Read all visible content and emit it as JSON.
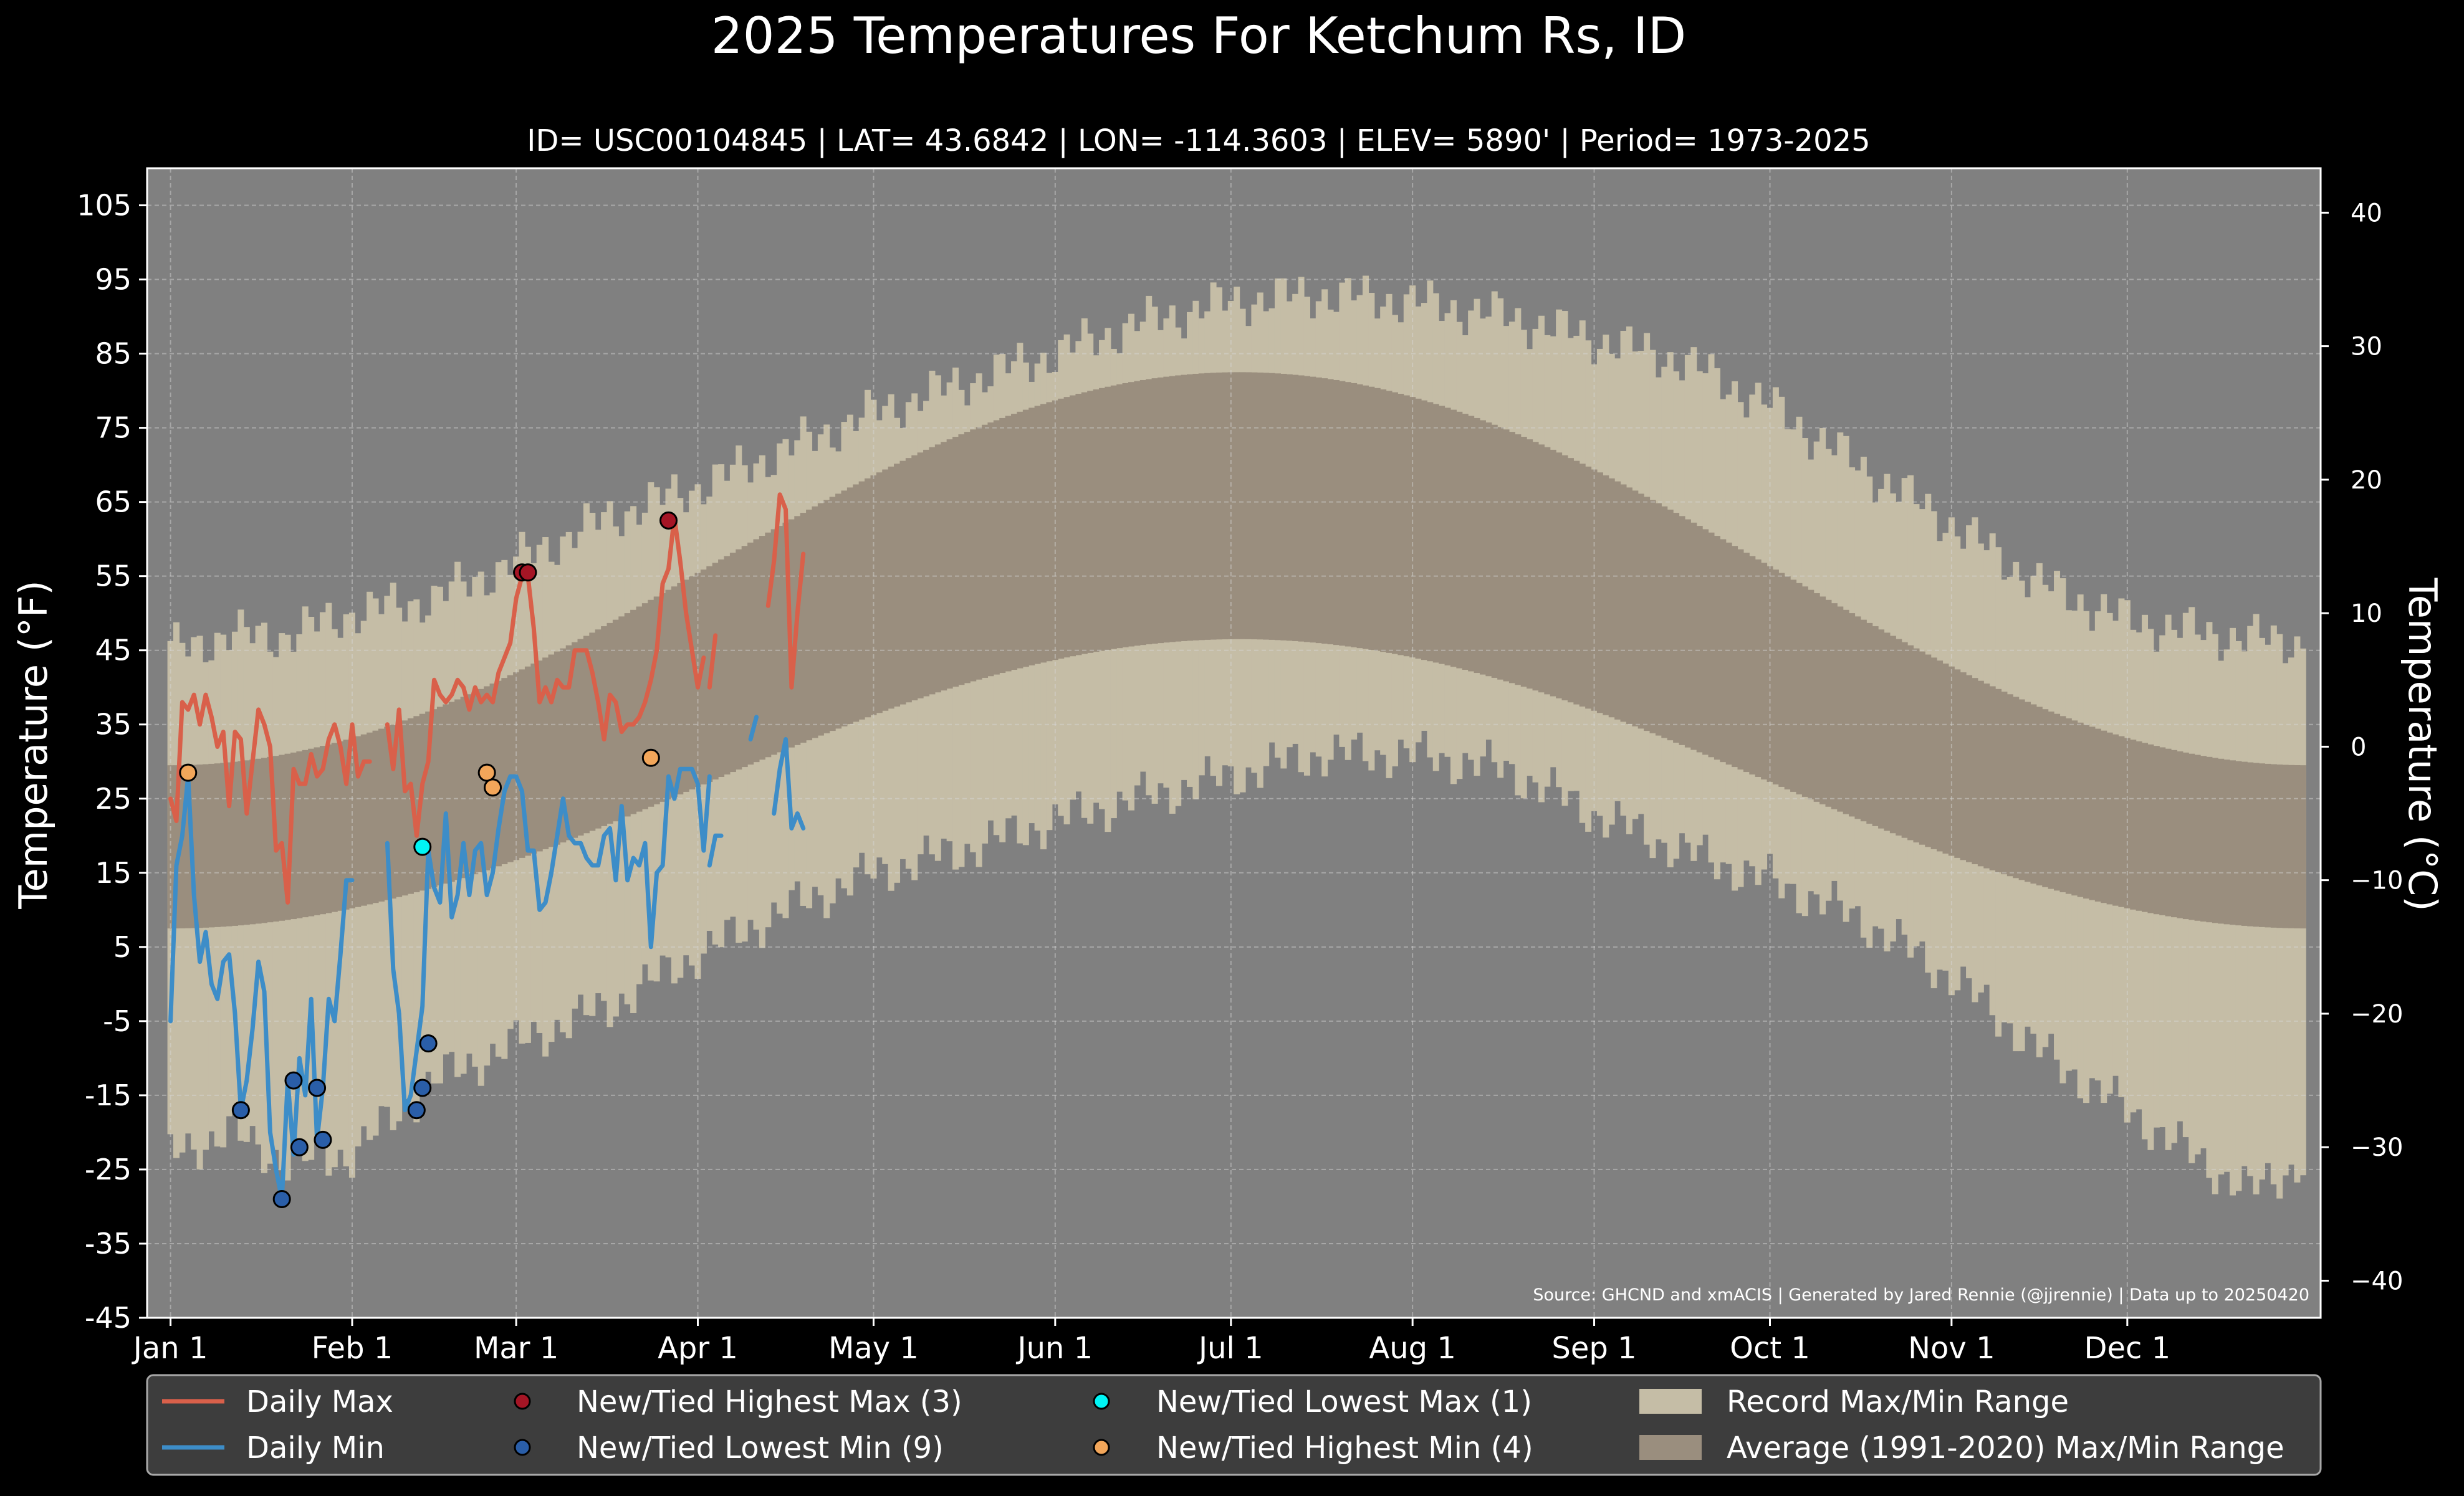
{
  "title": "2025 Temperatures For Ketchum Rs, ID",
  "subtitle": "ID= USC00104845 | LAT= 43.6842 | LON= -114.3603 | ELEV= 5890' | Period= 1973-2025",
  "source": "Source: GHCND and xmACIS | Generated by Jared Rennie (@jjrennie) | Data up to 20250420",
  "colors": {
    "background": "#000000",
    "plot_bg": "#808080",
    "record_band": "#c5bda6",
    "normal_band": "#9a8e7e",
    "daily_max": "#d9604a",
    "daily_min": "#3d8dc8",
    "highest_max": "#a51525",
    "lowest_min": "#2a5ea8",
    "lowest_max": "#00f5f5",
    "highest_min": "#f2a65a",
    "legend_bg": "#3d3d3d"
  },
  "chart_data": {
    "type": "line",
    "title": "2025 Temperatures For Ketchum Rs, ID",
    "ylabel": "Temperature ($^\\circ$F)",
    "ylabel_right": "Temperature ($^\\circ$C)",
    "ylabel_display": "Temperature (°F)",
    "ylabel_right_display": "Temperature (°C)",
    "ylim": [
      -45,
      110
    ],
    "ylim_right_c": [
      -42.78,
      43.33
    ],
    "xlim_days": [
      -4,
      367
    ],
    "yticks_f": [
      "105",
      "95",
      "85",
      "75",
      "65",
      "55",
      "45",
      "35",
      "25",
      "15",
      "5",
      "-5",
      "-15",
      "-25",
      "-35",
      "-45"
    ],
    "yticks_c": [
      "40",
      "30",
      "20",
      "10",
      "0",
      "−10",
      "−20",
      "−30",
      "−40"
    ],
    "xticks": [
      {
        "label": "Jan 1",
        "day": 0
      },
      {
        "label": "Feb 1",
        "day": 31
      },
      {
        "label": "Mar 1",
        "day": 59
      },
      {
        "label": "Apr 1",
        "day": 90
      },
      {
        "label": "May 1",
        "day": 120
      },
      {
        "label": "Jun 1",
        "day": 151
      },
      {
        "label": "Jul 1",
        "day": 181
      },
      {
        "label": "Aug 1",
        "day": 212
      },
      {
        "label": "Sep 1",
        "day": 243
      },
      {
        "label": "Oct 1",
        "day": 273
      },
      {
        "label": "Nov 1",
        "day": 304
      },
      {
        "label": "Dec 1",
        "day": 334
      }
    ],
    "grid": true,
    "legend_position": "bottom",
    "record_max_curve": [
      [
        0,
        45
      ],
      [
        10,
        47
      ],
      [
        20,
        47
      ],
      [
        31,
        50
      ],
      [
        45,
        52
      ],
      [
        59,
        57
      ],
      [
        75,
        63
      ],
      [
        90,
        67
      ],
      [
        105,
        72
      ],
      [
        120,
        77
      ],
      [
        135,
        81
      ],
      [
        151,
        85
      ],
      [
        165,
        89
      ],
      [
        181,
        92
      ],
      [
        196,
        93
      ],
      [
        212,
        92
      ],
      [
        228,
        90
      ],
      [
        243,
        87
      ],
      [
        258,
        84
      ],
      [
        273,
        78
      ],
      [
        288,
        70
      ],
      [
        304,
        62
      ],
      [
        319,
        54
      ],
      [
        334,
        49
      ],
      [
        350,
        47
      ],
      [
        364,
        46
      ]
    ],
    "record_min_curve": [
      [
        0,
        -23
      ],
      [
        10,
        -20
      ],
      [
        20,
        -24
      ],
      [
        31,
        -23
      ],
      [
        45,
        -13
      ],
      [
        59,
        -8
      ],
      [
        75,
        -3
      ],
      [
        90,
        4
      ],
      [
        105,
        10
      ],
      [
        120,
        15
      ],
      [
        135,
        18
      ],
      [
        151,
        22
      ],
      [
        165,
        25
      ],
      [
        181,
        28
      ],
      [
        196,
        31
      ],
      [
        212,
        31
      ],
      [
        228,
        29
      ],
      [
        243,
        23
      ],
      [
        258,
        18
      ],
      [
        273,
        14
      ],
      [
        288,
        9
      ],
      [
        304,
        1
      ],
      [
        319,
        -9
      ],
      [
        334,
        -17
      ],
      [
        345,
        -23
      ],
      [
        355,
        -28
      ],
      [
        364,
        -24
      ]
    ],
    "normal_max": {
      "min_day": 0,
      "min_value": 29.5,
      "max_day": 212,
      "max_value": 82.5
    },
    "normal_min": {
      "min_day": 0,
      "min_value": 7.5,
      "max_day": 212,
      "max_value": 46.5
    },
    "series": [
      {
        "name": "Daily Max",
        "segments": [
          {
            "start_day": 0,
            "values": [
              25,
              22,
              38,
              37,
              39,
              35,
              39,
              36,
              32,
              34,
              24,
              34,
              33,
              23,
              30,
              37,
              35,
              32,
              18,
              19,
              11,
              29,
              27,
              27,
              31,
              28,
              29,
              33,
              35,
              32,
              27,
              35,
              28,
              30,
              30
            ]
          },
          {
            "start_day": 37,
            "values": [
              35,
              29,
              37,
              26,
              27,
              20,
              27,
              30,
              41,
              39,
              38,
              39,
              41,
              40,
              37,
              40,
              38,
              39,
              38,
              42,
              44,
              46,
              52,
              55,
              55,
              48,
              38,
              40,
              38,
              41,
              40,
              40,
              45,
              45,
              45,
              42,
              38,
              33,
              39,
              38,
              34,
              35,
              35,
              36,
              38,
              41,
              45,
              54,
              56,
              63,
              57,
              50,
              45,
              40,
              44
            ]
          },
          {
            "start_day": 92,
            "values": [
              40,
              47
            ]
          },
          {
            "start_day": 102,
            "values": [
              51,
              57,
              66,
              64,
              40,
              50,
              58
            ]
          }
        ]
      },
      {
        "name": "Daily Min",
        "segments": [
          {
            "start_day": 0,
            "values": [
              -5,
              16,
              20,
              28,
              12,
              3,
              7,
              0,
              -2,
              3,
              4,
              -4,
              -17,
              -13,
              -6,
              3,
              -1,
              -20,
              -25,
              -29,
              -13,
              -23,
              -10,
              -15,
              -2,
              -21,
              -14,
              -2,
              -5,
              4,
              14,
              14
            ]
          },
          {
            "start_day": 37,
            "values": [
              19,
              2,
              -4,
              -17,
              -15,
              -9,
              -3,
              18,
              13,
              11,
              23,
              9,
              12,
              19,
              12,
              18,
              19,
              12,
              15,
              21,
              26,
              28,
              28,
              26,
              18,
              18,
              10,
              11,
              15,
              20,
              25,
              20,
              19,
              19,
              17,
              16,
              16,
              20,
              21,
              14,
              24,
              14,
              17,
              16,
              19,
              5,
              15,
              16,
              28,
              25,
              29,
              29,
              29,
              27,
              18,
              28
            ]
          },
          {
            "start_day": 92,
            "values": [
              16,
              20,
              20
            ]
          },
          {
            "start_day": 99,
            "values": [
              33,
              36
            ]
          },
          {
            "start_day": 103,
            "values": [
              23,
              29,
              33,
              21,
              23,
              21
            ]
          }
        ]
      },
      {
        "name": "New/Tied Highest Max (3)",
        "points": [
          [
            60,
            55.5
          ],
          [
            61,
            55.5
          ],
          [
            85,
            62.5
          ]
        ]
      },
      {
        "name": "New/Tied Lowest Min (9)",
        "points": [
          [
            12,
            -17
          ],
          [
            19,
            -29
          ],
          [
            21,
            -13
          ],
          [
            22,
            -22
          ],
          [
            25,
            -14
          ],
          [
            26,
            -21
          ],
          [
            42,
            -17
          ],
          [
            43,
            -14
          ],
          [
            44,
            -8
          ]
        ]
      },
      {
        "name": "New/Tied Lowest Max (1)",
        "points": [
          [
            43,
            18.5
          ]
        ]
      },
      {
        "name": "New/Tied Highest Min (4)",
        "points": [
          [
            3,
            28.5
          ],
          [
            54,
            28.5
          ],
          [
            55,
            26.5
          ],
          [
            82,
            30.5
          ]
        ]
      }
    ],
    "legend": [
      {
        "label": "Daily Max",
        "kind": "line",
        "color_key": "daily_max"
      },
      {
        "label": "Daily Min",
        "kind": "line",
        "color_key": "daily_min"
      },
      {
        "label": "New/Tied Highest Max (3)",
        "kind": "dot",
        "color_key": "highest_max"
      },
      {
        "label": "New/Tied Lowest Min (9)",
        "kind": "dot",
        "color_key": "lowest_min"
      },
      {
        "label": "New/Tied Lowest Max (1)",
        "kind": "dot",
        "color_key": "lowest_max"
      },
      {
        "label": "New/Tied Highest Min (4)",
        "kind": "dot",
        "color_key": "highest_min"
      },
      {
        "label": "Record Max/Min Range",
        "kind": "patch",
        "color_key": "record_band"
      },
      {
        "label": "Average (1991-2020) Max/Min Range",
        "kind": "patch",
        "color_key": "normal_band"
      }
    ]
  }
}
